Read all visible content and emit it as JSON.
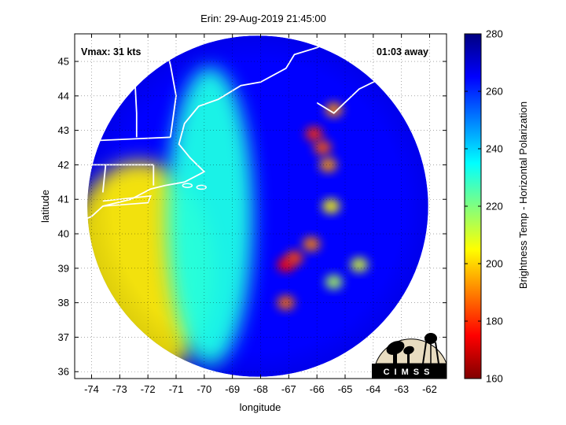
{
  "chart_data": {
    "type": "heatmap",
    "title": "Erin: 29-Aug-2019 21:45:00",
    "xlabel": "longitude",
    "ylabel": "latitude",
    "colorbar_label": "Brightness Temp - Horizontal Polarization",
    "xlim": [
      -74.6,
      -61.4
    ],
    "ylim": [
      35.8,
      45.8
    ],
    "xticks": [
      -74,
      -73,
      -72,
      -71,
      -70,
      -69,
      -68,
      -67,
      -66,
      -65,
      -64,
      -63,
      -62
    ],
    "yticks": [
      36,
      37,
      38,
      39,
      40,
      41,
      42,
      43,
      44,
      45
    ],
    "colorbar_range": [
      160,
      280
    ],
    "colorbar_ticks": [
      160,
      180,
      200,
      220,
      240,
      260,
      280
    ],
    "annotations": {
      "vmax": "Vmax: 31 kts",
      "time_offset": "01:03 away"
    },
    "grid": true,
    "colormap": [
      "#800000",
      "#ff0000",
      "#ff8000",
      "#ffff00",
      "#80ff80",
      "#00ffff",
      "#0080ff",
      "#0000ff",
      "#000080"
    ],
    "swath_center": [
      -68.1,
      40.8
    ],
    "swath_radius_deg": 4.95,
    "background_tb": 265,
    "features": [
      {
        "region": "warm swath west",
        "lon": -72.3,
        "lat": 38.9,
        "tb": 203
      },
      {
        "region": "shelf band",
        "lon": -69.8,
        "lat": 40.5,
        "tb": 232
      },
      {
        "region": "cold cloud",
        "lon": -67.1,
        "lat": 39.1,
        "tb": 175
      },
      {
        "region": "cold cloud",
        "lon": -66.8,
        "lat": 39.3,
        "tb": 183
      },
      {
        "region": "cold cloud",
        "lon": -66.2,
        "lat": 39.7,
        "tb": 190
      },
      {
        "region": "cold cloud",
        "lon": -67.1,
        "lat": 38.0,
        "tb": 188
      },
      {
        "region": "cold cloud",
        "lon": -66.1,
        "lat": 42.9,
        "tb": 180
      },
      {
        "region": "cold cloud",
        "lon": -65.8,
        "lat": 42.5,
        "tb": 185
      },
      {
        "region": "cold cloud",
        "lon": -65.6,
        "lat": 42.0,
        "tb": 193
      },
      {
        "region": "cold cloud",
        "lon": -65.4,
        "lat": 43.6,
        "tb": 192
      },
      {
        "region": "cold cloud",
        "lon": -65.5,
        "lat": 40.8,
        "tb": 205
      },
      {
        "region": "cold cloud",
        "lon": -64.5,
        "lat": 39.1,
        "tb": 210
      },
      {
        "region": "cold cloud",
        "lon": -65.4,
        "lat": 38.6,
        "tb": 215
      }
    ]
  },
  "logo": {
    "text": "CIMSS"
  }
}
